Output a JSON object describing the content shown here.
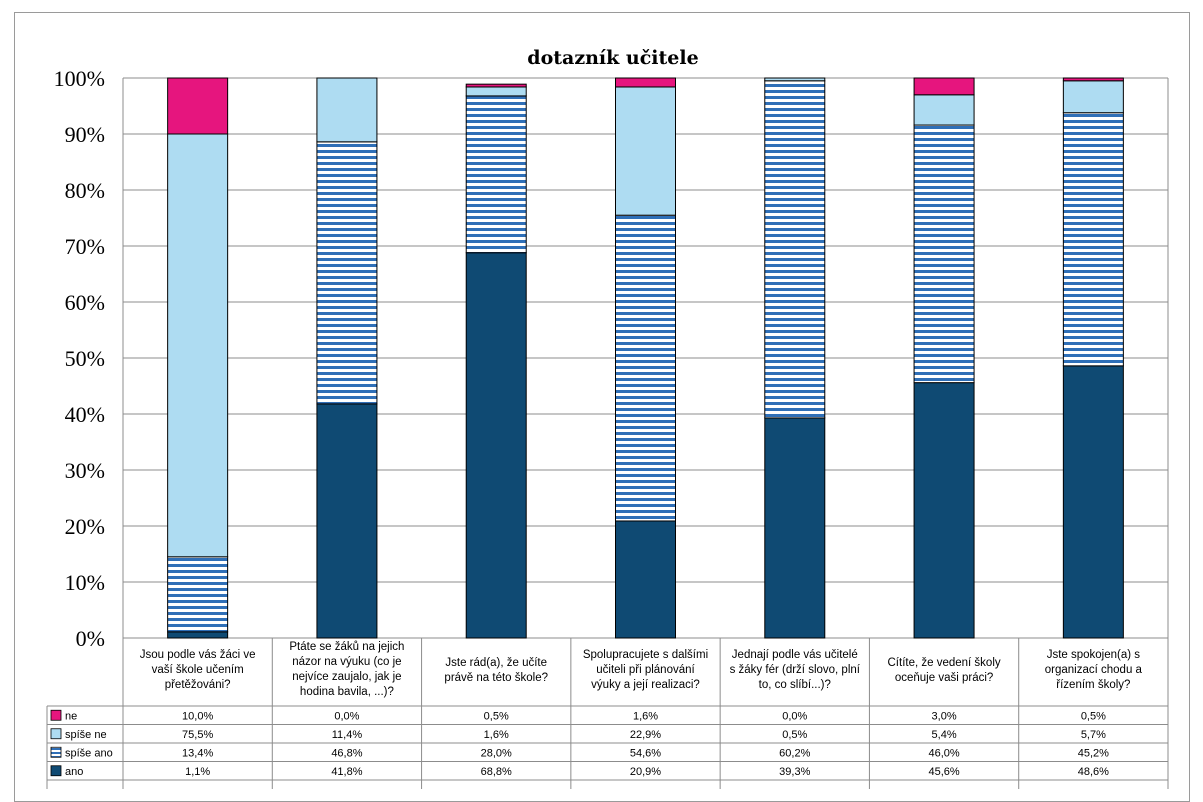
{
  "chart_data": {
    "type": "bar",
    "stacked": true,
    "percent": true,
    "title": "dotazník učitele",
    "ylim": [
      0,
      100
    ],
    "yticks": [
      "0%",
      "10%",
      "20%",
      "30%",
      "40%",
      "50%",
      "60%",
      "70%",
      "80%",
      "90%",
      "100%"
    ],
    "grid": true,
    "legend_placement": "data-table-left",
    "categories": [
      [
        "Jsou podle vás žáci ve",
        "vaší škole učením",
        "přetěžováni?"
      ],
      [
        "Ptáte se žáků na jejich",
        "názor na výuku (co je",
        "nejvíce zaujalo, jak je",
        "hodina bavila, ...)?"
      ],
      [
        "Jste rád(a), že učíte",
        "právě na této škole?"
      ],
      [
        "Spolupracujete s dalšími",
        "učiteli při plánování",
        "výuky a její realizaci?"
      ],
      [
        "Jednají podle vás učitelé",
        "s žáky fér (drží slovo, plní",
        "to, co slíbí...)?"
      ],
      [
        "Cítíte, že vedení školy",
        "oceňuje vaši práci?"
      ],
      [
        "Jste spokojen(a) s",
        "organizací chodu a",
        "řízením školy?"
      ]
    ],
    "series": [
      {
        "name": "ne",
        "color": "#e6157e",
        "pattern": "solid",
        "values": [
          10.0,
          0.0,
          0.5,
          1.6,
          0.0,
          3.0,
          0.5
        ],
        "labels": [
          "10,0%",
          "0,0%",
          "0,5%",
          "1,6%",
          "0,0%",
          "3,0%",
          "0,5%"
        ]
      },
      {
        "name": "spíše ne",
        "color": "#aedcf2",
        "pattern": "solid",
        "values": [
          75.5,
          11.4,
          1.6,
          22.9,
          0.5,
          5.4,
          5.7
        ],
        "labels": [
          "75,5%",
          "11,4%",
          "1,6%",
          "22,9%",
          "0,5%",
          "5,4%",
          "5,7%"
        ]
      },
      {
        "name": "spíše ano",
        "color": "#2f6fb7",
        "pattern": "stripes",
        "values": [
          13.4,
          46.8,
          28.0,
          54.6,
          60.2,
          46.0,
          45.2
        ],
        "labels": [
          "13,4%",
          "46,8%",
          "28,0%",
          "54,6%",
          "60,2%",
          "46,0%",
          "45,2%"
        ]
      },
      {
        "name": "ano",
        "color": "#0f4a73",
        "pattern": "solid",
        "values": [
          1.1,
          41.8,
          68.8,
          20.9,
          39.3,
          45.6,
          48.6
        ],
        "labels": [
          "1,1%",
          "41,8%",
          "68,8%",
          "20,9%",
          "39,3%",
          "45,6%",
          "48,6%"
        ]
      }
    ]
  }
}
